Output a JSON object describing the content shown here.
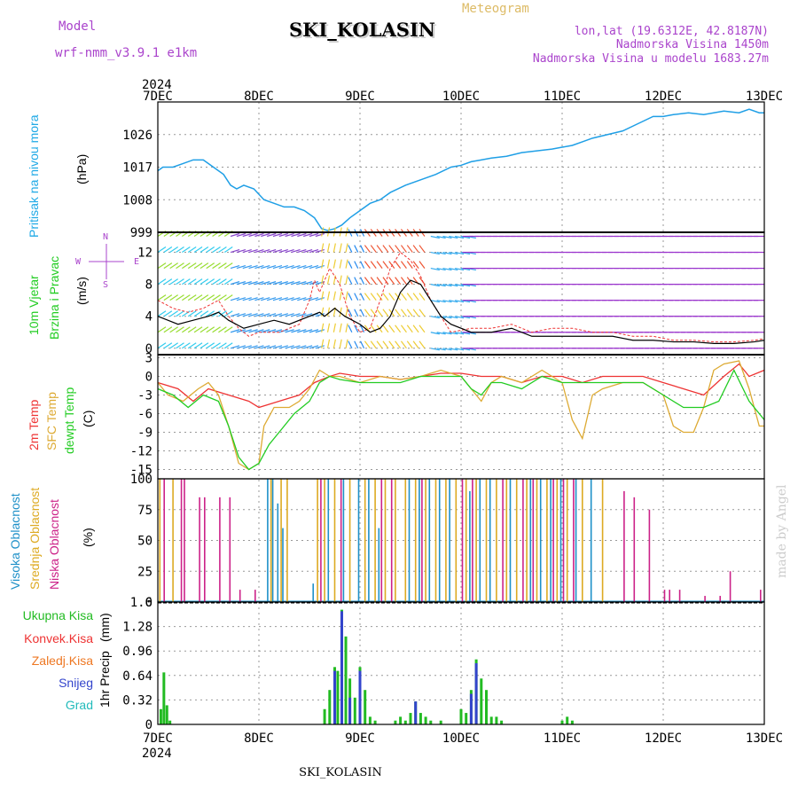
{
  "header": {
    "model_label": "Model",
    "model_value": "wrf-nmm_v3.9.1  e1km",
    "station": "SKI_KOLASIN",
    "meteogram": "Meteogram",
    "coords": "lon,lat (19.6312E, 42.8187N)",
    "altitude": "Nadmorska Visina 1450m",
    "model_altitude": "Nadmorska Visina u modelu 1683.27m",
    "year_top": "2024",
    "year_bottom": "2024",
    "footer_station": "SKI_KOLASIN",
    "watermark": "made by Angel"
  },
  "colors": {
    "pressure": "#1f9fe6",
    "temp2m": "#ee3333",
    "sfc": "#ddaa33",
    "dewpt": "#22cc22",
    "high_cloud": "#1e90c8",
    "mid_cloud": "#ddaa22",
    "low_cloud": "#cc2288",
    "total_precip": "#22bb22",
    "snow": "#3344cc",
    "graupel": "#22bbbb",
    "conv": "#ee3333",
    "frz": "#ee7722",
    "wind_speed": "#000000"
  },
  "x_axis": {
    "ticks": [
      "7DEC",
      "8DEC",
      "9DEC",
      "10DEC",
      "11DEC",
      "12DEC",
      "13DEC"
    ]
  },
  "panel_labels": {
    "pressure": [
      "Pritisak na nivou mora",
      "(hPa)"
    ],
    "wind": [
      "10m Vjetar",
      "Brzina i Pravac",
      "(m/s)"
    ],
    "wind_compass": [
      "N",
      "W",
      "E",
      "S"
    ],
    "temp": [
      "2m Temp",
      "SFC Temp",
      "dewpt Temp",
      "(C)"
    ],
    "cloud": [
      "Visoka Oblacnost",
      "Srednja Oblacnost",
      "Niska Oblacnost",
      "(%)"
    ],
    "precip_axis": [
      "1hr Precip",
      "(mm)"
    ],
    "precip_legend": [
      "Ukupna Kisa",
      "Konvek.Kisa",
      "Zaledj.Kisa",
      "Snijeg",
      "Grad"
    ]
  },
  "chart_data": [
    {
      "type": "line",
      "panel": "pressure",
      "ylabel": "(hPa)",
      "yticks": [
        "1026",
        "1017",
        "1008",
        "999"
      ],
      "ylim": [
        999,
        1035
      ],
      "x_unit": "days since 7DEC",
      "series": [
        {
          "name": "Pritisak na nivou mora",
          "x": [
            0,
            0.05,
            0.15,
            0.25,
            0.35,
            0.45,
            0.55,
            0.65,
            0.72,
            0.78,
            0.85,
            0.95,
            1.05,
            1.15,
            1.25,
            1.35,
            1.45,
            1.55,
            1.62,
            1.68,
            1.75,
            1.82,
            1.9,
            2.0,
            2.1,
            2.2,
            2.3,
            2.45,
            2.6,
            2.75,
            2.9,
            3.0,
            3.1,
            3.2,
            3.3,
            3.45,
            3.6,
            3.75,
            3.9,
            4.0,
            4.1,
            4.2,
            4.3,
            4.45,
            4.6,
            4.75,
            4.9,
            5.0,
            5.1,
            5.25,
            5.4,
            5.5,
            5.6,
            5.75,
            5.85,
            5.95,
            6.0
          ],
          "y": [
            1016,
            1017,
            1017,
            1018,
            1019,
            1019,
            1017,
            1015,
            1012,
            1011,
            1012,
            1011,
            1008,
            1007,
            1006,
            1006,
            1005,
            1003,
            1000,
            999.5,
            1000,
            1001,
            1003,
            1005,
            1007,
            1008,
            1010,
            1012,
            1013.5,
            1015,
            1017,
            1017.5,
            1018.5,
            1019,
            1019.5,
            1020,
            1021,
            1021.5,
            1022,
            1022.5,
            1023,
            1024,
            1025,
            1026,
            1027,
            1029,
            1031,
            1031,
            1031.5,
            1032,
            1031.5,
            1032,
            1032.5,
            1032,
            1033,
            1032,
            1032
          ]
        }
      ]
    },
    {
      "type": "line",
      "panel": "wind",
      "ylabel": "(m/s)",
      "yticks": [
        "0",
        "4",
        "8",
        "12"
      ],
      "ylim": [
        -0.8,
        14.5
      ],
      "x_unit": "days since 7DEC",
      "series": [
        {
          "name": "wind speed",
          "x": [
            0,
            0.1,
            0.2,
            0.35,
            0.5,
            0.6,
            0.7,
            0.85,
            1.0,
            1.15,
            1.3,
            1.5,
            1.6,
            1.65,
            1.75,
            1.85,
            2.0,
            2.1,
            2.2,
            2.3,
            2.4,
            2.5,
            2.6,
            2.7,
            2.8,
            2.9,
            3.1,
            3.3,
            3.5,
            3.7,
            3.9,
            4.1,
            4.3,
            4.5,
            4.7,
            4.9,
            5.1,
            5.3,
            5.5,
            5.7,
            5.9,
            6.0
          ],
          "y": [
            4,
            3.5,
            3,
            3.5,
            4,
            4.5,
            3.5,
            2.5,
            3,
            3.5,
            3,
            4,
            4.5,
            4,
            5,
            4,
            3,
            2,
            2.5,
            4,
            7,
            8.5,
            8,
            6,
            4,
            3,
            2,
            2,
            2.5,
            1.5,
            1.5,
            1.5,
            1.5,
            1.5,
            1,
            1,
            0.8,
            0.8,
            0.6,
            0.6,
            0.8,
            1
          ]
        },
        {
          "name": "gust",
          "x": [
            0,
            0.15,
            0.3,
            0.45,
            0.6,
            0.7,
            0.8,
            0.9,
            1.0,
            1.2,
            1.4,
            1.5,
            1.55,
            1.6,
            1.7,
            1.8,
            1.9,
            2.0,
            2.1,
            2.2,
            2.3,
            2.4,
            2.5,
            2.6,
            2.7,
            2.8,
            2.9,
            3.1,
            3.3,
            3.5,
            3.7,
            3.9,
            4.1,
            4.3,
            4.5,
            4.7,
            4.9,
            5.1,
            5.3,
            5.5,
            5.7,
            5.9,
            6.0
          ],
          "y": [
            6,
            5,
            4.5,
            5,
            6,
            4,
            2.5,
            1.5,
            2,
            2,
            3,
            6,
            8.5,
            7,
            10,
            8,
            4,
            2,
            2.5,
            6,
            10,
            12,
            11,
            9,
            6,
            4,
            2,
            2.5,
            2.5,
            3,
            2,
            2.5,
            2.5,
            2,
            2,
            1.5,
            1.5,
            1,
            1,
            0.8,
            0.8,
            1,
            1.2
          ]
        }
      ]
    },
    {
      "type": "line",
      "panel": "temperature",
      "ylabel": "(C)",
      "yticks": [
        "3",
        "0",
        "-3",
        "-6",
        "-9",
        "-12",
        "-15"
      ],
      "ylim": [
        -16.5,
        3.5
      ],
      "x_unit": "days since 7DEC",
      "series": [
        {
          "name": "2m Temp",
          "x": [
            0,
            0.2,
            0.35,
            0.5,
            0.7,
            0.9,
            1.0,
            1.2,
            1.4,
            1.55,
            1.7,
            1.8,
            2.0,
            2.2,
            2.4,
            2.6,
            2.8,
            3.0,
            3.2,
            3.4,
            3.6,
            3.8,
            4.0,
            4.2,
            4.4,
            4.6,
            4.8,
            5.0,
            5.2,
            5.4,
            5.6,
            5.75,
            5.85,
            6.0
          ],
          "y": [
            -1,
            -2,
            -4,
            -2,
            -3,
            -4,
            -5,
            -4,
            -3,
            -1,
            0,
            0.5,
            0,
            0,
            -0.5,
            0,
            0.5,
            0.5,
            0,
            0,
            -1,
            0,
            0,
            -1,
            0,
            0,
            0,
            -1,
            -2,
            -3,
            0,
            2,
            0,
            1
          ]
        },
        {
          "name": "SFC Temp",
          "x": [
            0,
            0.1,
            0.25,
            0.4,
            0.5,
            0.6,
            0.7,
            0.8,
            0.9,
            1.0,
            1.05,
            1.15,
            1.3,
            1.4,
            1.5,
            1.6,
            1.7,
            1.8,
            2.0,
            2.2,
            2.4,
            2.6,
            2.8,
            3.0,
            3.1,
            3.2,
            3.3,
            3.4,
            3.6,
            3.8,
            4.0,
            4.1,
            4.2,
            4.3,
            4.4,
            4.6,
            4.8,
            5.0,
            5.1,
            5.2,
            5.3,
            5.4,
            5.5,
            5.6,
            5.75,
            5.85,
            5.95,
            6.0
          ],
          "y": [
            -1,
            -3,
            -4,
            -2,
            -1,
            -3,
            -8,
            -14,
            -15,
            -14,
            -8,
            -5,
            -5,
            -4,
            -2,
            1,
            0,
            0,
            -1,
            0,
            -0.5,
            0,
            1,
            0,
            -2,
            -4,
            -1,
            0,
            -1,
            1,
            -1,
            -7,
            -10,
            -3,
            -2,
            -1,
            -1,
            -3,
            -8,
            -9,
            -9,
            -5,
            1,
            2,
            2.5,
            -2,
            -8,
            -8
          ]
        },
        {
          "name": "dewpt Temp",
          "x": [
            0,
            0.15,
            0.3,
            0.45,
            0.6,
            0.7,
            0.8,
            0.9,
            1.0,
            1.1,
            1.2,
            1.35,
            1.5,
            1.6,
            1.7,
            1.8,
            2.0,
            2.2,
            2.4,
            2.6,
            2.8,
            3.0,
            3.1,
            3.2,
            3.3,
            3.4,
            3.6,
            3.8,
            4.0,
            4.2,
            4.4,
            4.6,
            4.8,
            5.0,
            5.2,
            5.4,
            5.55,
            5.7,
            5.85,
            6.0
          ],
          "y": [
            -2,
            -3,
            -5,
            -3,
            -4,
            -8,
            -13,
            -15,
            -14,
            -11,
            -9,
            -6,
            -4,
            -1,
            0,
            -0.5,
            -1,
            -1,
            -1,
            0,
            0,
            0,
            -2,
            -3,
            -1,
            -1,
            -2,
            0,
            -1,
            -1,
            -1,
            -1,
            -1,
            -3,
            -5,
            -5,
            -4,
            1,
            -4,
            -7
          ]
        }
      ]
    },
    {
      "type": "bar",
      "panel": "cloud",
      "ylabel": "(%)",
      "yticks": [
        "100",
        "75",
        "50",
        "25",
        "0"
      ],
      "ylim": [
        0,
        100
      ],
      "x_unit": "days since 7DEC",
      "series": [
        {
          "name": "Visoka Oblacnost",
          "x": [
            1.1,
            1.15,
            1.2,
            1.25,
            1.55,
            1.7,
            1.85,
            2.0,
            2.1,
            2.2,
            2.5,
            2.6,
            2.7,
            2.8,
            2.9,
            3.1,
            3.2,
            3.3,
            3.5,
            3.7,
            3.8,
            3.9,
            4.0,
            4.15,
            4.3
          ],
          "y": [
            100,
            100,
            80,
            60,
            15,
            100,
            100,
            100,
            100,
            60,
            100,
            100,
            100,
            100,
            100,
            90,
            100,
            100,
            100,
            100,
            100,
            100,
            100,
            100,
            100
          ]
        },
        {
          "name": "Srednja Oblacnost",
          "x": [
            0.02,
            0.15,
            1.12,
            1.22,
            1.28,
            1.58,
            1.65,
            1.75,
            1.9,
            2.05,
            2.15,
            2.25,
            2.35,
            2.45,
            2.55,
            2.65,
            2.75,
            2.85,
            2.95,
            3.05,
            3.15,
            3.25,
            3.35,
            3.45,
            3.55,
            3.65,
            3.75,
            3.85,
            3.95,
            4.05,
            4.2,
            4.4
          ],
          "y": [
            100,
            100,
            100,
            100,
            100,
            100,
            100,
            100,
            100,
            100,
            100,
            100,
            100,
            100,
            100,
            100,
            100,
            100,
            100,
            100,
            100,
            100,
            100,
            100,
            100,
            100,
            100,
            100,
            100,
            100,
            100,
            100
          ]
        },
        {
          "name": "Niska Oblacnost",
          "x": [
            0.05,
            0.22,
            0.25,
            0.4,
            0.45,
            0.6,
            0.7,
            0.8,
            0.95,
            1.6,
            1.8,
            2.2,
            2.3,
            2.6,
            3.0,
            3.1,
            3.4,
            3.6,
            3.7,
            3.9,
            4.0,
            4.1,
            4.6,
            4.7,
            4.85,
            5.0,
            5.05,
            5.15,
            5.4,
            5.55,
            5.65,
            5.95
          ],
          "y": [
            100,
            100,
            100,
            85,
            85,
            85,
            85,
            10,
            10,
            100,
            100,
            100,
            100,
            100,
            100,
            100,
            100,
            100,
            100,
            100,
            100,
            100,
            90,
            85,
            75,
            10,
            10,
            10,
            5,
            5,
            25,
            10
          ]
        }
      ]
    },
    {
      "type": "bar",
      "panel": "precipitation",
      "ylabel": "1hr Precip (mm)",
      "yticks": [
        "0",
        "0.32",
        "0.64",
        "0.96",
        "1.28",
        "1.6"
      ],
      "ylim": [
        0,
        1.6
      ],
      "x_unit": "days since 7DEC",
      "series": [
        {
          "name": "Ukupna Kisa",
          "x": [
            0.03,
            0.06,
            0.09,
            0.12,
            1.65,
            1.7,
            1.75,
            1.78,
            1.82,
            1.86,
            1.9,
            1.95,
            2.0,
            2.05,
            2.1,
            2.15,
            2.35,
            2.4,
            2.45,
            2.5,
            2.55,
            2.6,
            2.65,
            2.7,
            2.8,
            3.0,
            3.05,
            3.1,
            3.15,
            3.2,
            3.25,
            3.3,
            3.35,
            3.4,
            4.0,
            4.05,
            4.1
          ],
          "y": [
            0.2,
            0.68,
            0.25,
            0.05,
            0.2,
            0.45,
            0.75,
            0.7,
            1.5,
            1.15,
            0.6,
            0.35,
            0.75,
            0.45,
            0.1,
            0.05,
            0.05,
            0.1,
            0.05,
            0.15,
            0.3,
            0.15,
            0.1,
            0.05,
            0.05,
            0.2,
            0.15,
            0.45,
            0.85,
            0.6,
            0.45,
            0.1,
            0.1,
            0.05,
            0.05,
            0.1,
            0.05
          ]
        },
        {
          "name": "Snijeg",
          "x": [
            1.75,
            1.82,
            1.9,
            2.0,
            2.55,
            3.1,
            3.15
          ],
          "y": [
            0.7,
            1.48,
            0.35,
            0.7,
            0.3,
            0.4,
            0.8
          ]
        }
      ]
    }
  ]
}
